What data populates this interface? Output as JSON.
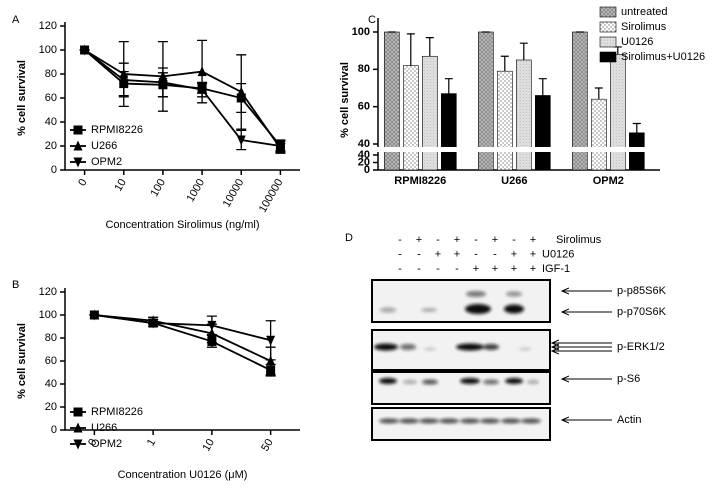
{
  "chart_data": [
    {
      "type": "line",
      "panel_label": "A",
      "ylabel": "% cell survival",
      "xlabel": "Concentration Sirolimus (ng/ml)",
      "categories": [
        "0",
        "10",
        "100",
        "1000",
        "10000",
        "100000"
      ],
      "ylim": [
        0,
        120
      ],
      "yticks": [
        0,
        20,
        40,
        60,
        80,
        100,
        120
      ],
      "series": [
        {
          "name": "RPMI8226",
          "color": "#000000",
          "marker": "square",
          "values": [
            100,
            72,
            71,
            68,
            60,
            20
          ],
          "errors": [
            0,
            10,
            10,
            4,
            12,
            5
          ]
        },
        {
          "name": "U266",
          "color": "#000000",
          "marker": "triangle",
          "values": [
            100,
            80,
            78,
            82,
            65,
            18
          ],
          "errors": [
            0,
            27,
            29,
            26,
            31,
            4
          ]
        },
        {
          "name": "OPM2",
          "color": "#000000",
          "marker": "triangle-down",
          "values": [
            100,
            75,
            73,
            67,
            25,
            20
          ],
          "errors": [
            0,
            14,
            12,
            6,
            8,
            4
          ]
        }
      ]
    },
    {
      "type": "line",
      "panel_label": "B",
      "ylabel": "% cell survival",
      "xlabel": "Concentration U0126 (μM)",
      "categories": [
        "0",
        "1",
        "10",
        "50"
      ],
      "ylim": [
        0,
        120
      ],
      "yticks": [
        0,
        20,
        40,
        60,
        80,
        100,
        120
      ],
      "series": [
        {
          "name": "RPMI8226",
          "color": "#000000",
          "marker": "square",
          "values": [
            100,
            93,
            77,
            52
          ],
          "errors": [
            0,
            3,
            5,
            5
          ]
        },
        {
          "name": "U266",
          "color": "#000000",
          "marker": "triangle",
          "values": [
            100,
            95,
            84,
            60
          ],
          "errors": [
            0,
            3,
            8,
            12
          ]
        },
        {
          "name": "OPM2",
          "color": "#000000",
          "marker": "triangle-down",
          "values": [
            100,
            93,
            91,
            78
          ],
          "errors": [
            0,
            3,
            8,
            17
          ]
        }
      ]
    },
    {
      "type": "bar",
      "panel_label": "C",
      "ylabel": "% cell survival",
      "categories": [
        "RPMI8226",
        "U266",
        "OPM2"
      ],
      "ylim": [
        40,
        100
      ],
      "yticks": [
        40,
        60,
        80,
        100
      ],
      "lower_ylim": [
        0,
        40
      ],
      "lower_yticks": [
        0,
        20,
        40
      ],
      "legend": "top-right",
      "series": [
        {
          "name": "untreated",
          "color": "#999999",
          "pattern": "crosshatch",
          "values": [
            100,
            100,
            100
          ],
          "errors": [
            0,
            0,
            0
          ]
        },
        {
          "name": "Sirolimus",
          "color": "#ffffff",
          "pattern": "dots",
          "values": [
            82,
            79,
            64
          ],
          "errors": [
            17,
            8,
            6
          ]
        },
        {
          "name": "U0126",
          "color": "#d9d9d9",
          "pattern": "fine",
          "values": [
            87,
            85,
            88
          ],
          "errors": [
            10,
            9,
            4
          ]
        },
        {
          "name": "Sirolimus+U0126",
          "color": "#000000",
          "values": [
            67,
            66,
            46
          ],
          "errors": [
            8,
            9,
            5
          ]
        }
      ]
    }
  ],
  "blot": {
    "panel_label": "D",
    "treatments": [
      {
        "name": "Sirolimus",
        "signs": [
          "-",
          "+",
          "-",
          "+",
          "-",
          "+",
          "-",
          "+"
        ]
      },
      {
        "name": "U0126",
        "signs": [
          "-",
          "-",
          "+",
          "+",
          "-",
          "-",
          "+",
          "+"
        ]
      },
      {
        "name": "IGF-1",
        "signs": [
          "-",
          "-",
          "-",
          "-",
          "+",
          "+",
          "+",
          "+"
        ]
      }
    ],
    "bands": [
      "p-p85S6K",
      "p-p70S6K",
      "p-ERK1/2",
      "p-S6",
      "Actin"
    ]
  }
}
